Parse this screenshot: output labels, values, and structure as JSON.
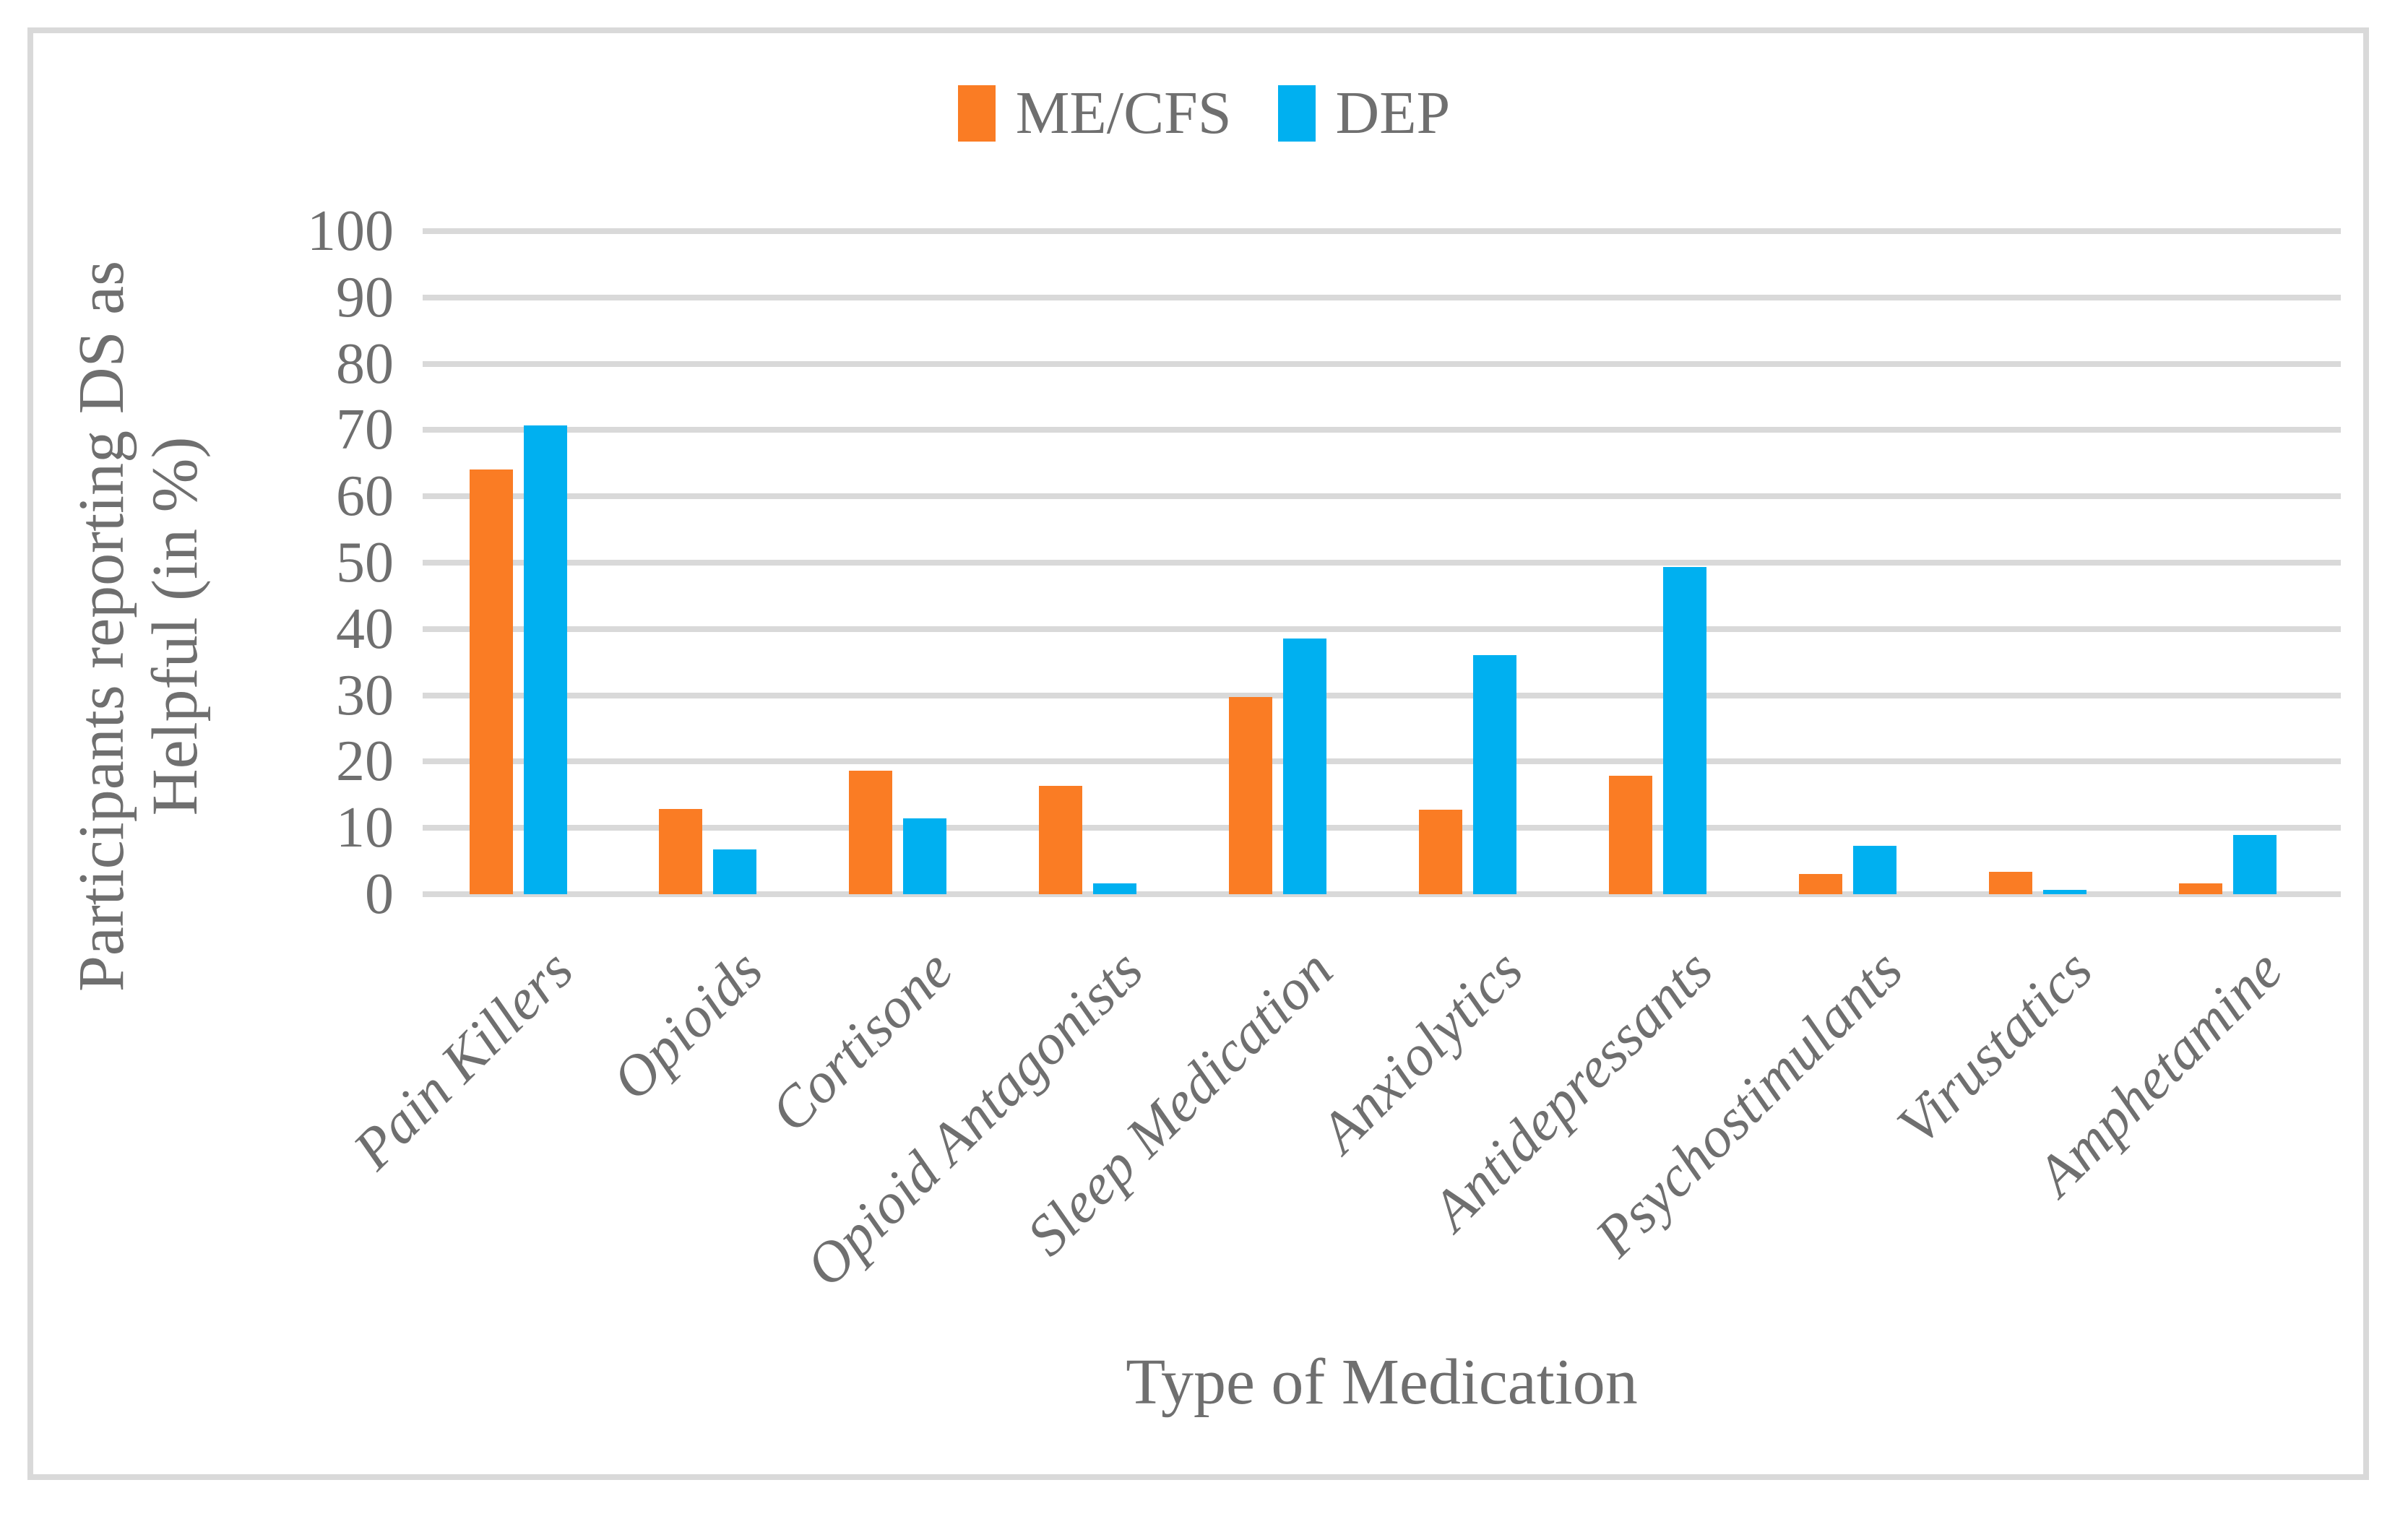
{
  "colors": {
    "background": "#ffffff",
    "frame_border": "#d9d9d9",
    "gridline": "#d9d9d9",
    "text": "#6f6f6f",
    "series_mecfs": "#fa7c24",
    "series_dep": "#00b0f0"
  },
  "chart_data": {
    "type": "bar",
    "title": "",
    "categories": [
      "Pain Killers",
      "Opioids",
      "Cortisone",
      "Opioid Antagonists",
      "Sleep Medication",
      "Anxiolytics",
      "Antidepressants",
      "Psychostimulants",
      "Virustatics",
      "Amphetamine"
    ],
    "series": [
      {
        "name": "ME/CFS",
        "color": "#fa7c24",
        "values": [
          64.1,
          12.8,
          18.6,
          16.3,
          29.7,
          12.7,
          17.9,
          3.1,
          3.4,
          1.6
        ]
      },
      {
        "name": "DEP",
        "color": "#00b0f0",
        "values": [
          70.7,
          6.8,
          11.4,
          1.6,
          38.6,
          36.1,
          49.4,
          7.3,
          0.7,
          8.9
        ]
      }
    ],
    "xlabel": "Type of Medication",
    "ylabel": "Participants reporting  DS as Helpful (in %)",
    "ylabel_lines": [
      "Participants reporting  DS as",
      "Helpful (in %)"
    ],
    "ylim": [
      0,
      100
    ],
    "yticks": [
      0,
      10,
      20,
      30,
      40,
      50,
      60,
      70,
      80,
      90,
      100
    ],
    "grid": true,
    "legend_position": "top",
    "x_tick_rotation_deg": 45
  }
}
